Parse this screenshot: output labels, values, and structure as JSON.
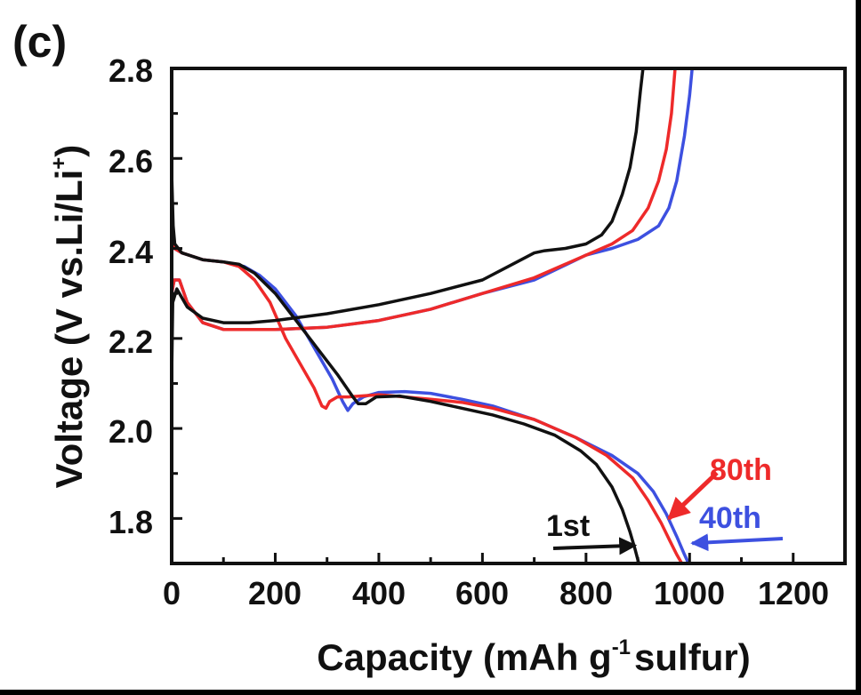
{
  "chart_data": {
    "type": "line",
    "panel_label": "(c)",
    "xlabel_main": "Capacity (mAh g",
    "xlabel_sup": "-1",
    "xlabel_tail": "sulfur)",
    "ylabel_main": "Voltage (V vs.Li/Li",
    "ylabel_sup": "+",
    "ylabel_tail": ")",
    "xlim": [
      0,
      1300
    ],
    "ylim": [
      1.7,
      2.8
    ],
    "x_ticks": [
      0,
      200,
      400,
      600,
      800,
      1000,
      1200
    ],
    "x_tick_labels": [
      "0",
      "200",
      "400",
      "600",
      "800",
      "1000",
      "1200"
    ],
    "y_ticks": [
      1.8,
      2.0,
      2.2,
      2.4,
      2.6,
      2.8
    ],
    "y_tick_labels": [
      "1.8",
      "2.0",
      "2.2",
      "2.4",
      "2.6",
      "2.8"
    ],
    "colors": {
      "black": "#111111",
      "red": "#ee2a2a",
      "blue": "#3d50e0"
    },
    "series": [
      {
        "name": "1st discharge",
        "label": "1st",
        "color": "#111111",
        "points": [
          [
            0,
            2.57
          ],
          [
            3,
            2.45
          ],
          [
            6,
            2.41
          ],
          [
            20,
            2.39
          ],
          [
            60,
            2.375
          ],
          [
            100,
            2.37
          ],
          [
            130,
            2.365
          ],
          [
            160,
            2.345
          ],
          [
            200,
            2.3
          ],
          [
            240,
            2.24
          ],
          [
            280,
            2.18
          ],
          [
            320,
            2.12
          ],
          [
            350,
            2.07
          ],
          [
            360,
            2.055
          ],
          [
            375,
            2.055
          ],
          [
            395,
            2.07
          ],
          [
            440,
            2.072
          ],
          [
            500,
            2.06
          ],
          [
            560,
            2.045
          ],
          [
            620,
            2.03
          ],
          [
            680,
            2.01
          ],
          [
            740,
            1.985
          ],
          [
            790,
            1.95
          ],
          [
            820,
            1.92
          ],
          [
            850,
            1.87
          ],
          [
            870,
            1.82
          ],
          [
            885,
            1.77
          ],
          [
            895,
            1.73
          ],
          [
            902,
            1.7
          ]
        ]
      },
      {
        "name": "1st charge",
        "label": "1st",
        "color": "#111111",
        "points": [
          [
            0,
            2.11
          ],
          [
            2,
            2.28
          ],
          [
            10,
            2.31
          ],
          [
            30,
            2.27
          ],
          [
            60,
            2.245
          ],
          [
            100,
            2.235
          ],
          [
            150,
            2.235
          ],
          [
            200,
            2.24
          ],
          [
            300,
            2.255
          ],
          [
            400,
            2.275
          ],
          [
            500,
            2.3
          ],
          [
            600,
            2.33
          ],
          [
            650,
            2.36
          ],
          [
            700,
            2.39
          ],
          [
            720,
            2.395
          ],
          [
            760,
            2.4
          ],
          [
            800,
            2.41
          ],
          [
            830,
            2.43
          ],
          [
            850,
            2.46
          ],
          [
            870,
            2.52
          ],
          [
            885,
            2.58
          ],
          [
            897,
            2.66
          ],
          [
            905,
            2.75
          ],
          [
            910,
            2.8
          ]
        ]
      },
      {
        "name": "40th discharge",
        "label": "40th",
        "color": "#3d50e0",
        "points": [
          [
            0,
            2.41
          ],
          [
            5,
            2.4
          ],
          [
            20,
            2.39
          ],
          [
            60,
            2.375
          ],
          [
            100,
            2.37
          ],
          [
            140,
            2.36
          ],
          [
            170,
            2.34
          ],
          [
            200,
            2.31
          ],
          [
            240,
            2.25
          ],
          [
            280,
            2.17
          ],
          [
            310,
            2.11
          ],
          [
            330,
            2.06
          ],
          [
            340,
            2.04
          ],
          [
            350,
            2.055
          ],
          [
            370,
            2.07
          ],
          [
            400,
            2.08
          ],
          [
            450,
            2.082
          ],
          [
            500,
            2.078
          ],
          [
            560,
            2.065
          ],
          [
            620,
            2.05
          ],
          [
            700,
            2.02
          ],
          [
            780,
            1.98
          ],
          [
            850,
            1.94
          ],
          [
            900,
            1.9
          ],
          [
            930,
            1.86
          ],
          [
            955,
            1.81
          ],
          [
            975,
            1.76
          ],
          [
            990,
            1.72
          ],
          [
            998,
            1.7
          ]
        ]
      },
      {
        "name": "40th charge",
        "label": "40th",
        "color": "#3d50e0",
        "points": [
          [
            0,
            2.3
          ],
          [
            5,
            2.33
          ],
          [
            15,
            2.33
          ],
          [
            30,
            2.28
          ],
          [
            60,
            2.235
          ],
          [
            100,
            2.22
          ],
          [
            200,
            2.22
          ],
          [
            300,
            2.225
          ],
          [
            400,
            2.24
          ],
          [
            500,
            2.265
          ],
          [
            600,
            2.3
          ],
          [
            700,
            2.33
          ],
          [
            800,
            2.385
          ],
          [
            850,
            2.4
          ],
          [
            900,
            2.42
          ],
          [
            940,
            2.45
          ],
          [
            960,
            2.49
          ],
          [
            975,
            2.55
          ],
          [
            990,
            2.65
          ],
          [
            1000,
            2.74
          ],
          [
            1005,
            2.8
          ]
        ]
      },
      {
        "name": "80th discharge",
        "label": "80th",
        "color": "#ee2a2a",
        "points": [
          [
            0,
            2.41
          ],
          [
            5,
            2.4
          ],
          [
            20,
            2.39
          ],
          [
            60,
            2.375
          ],
          [
            100,
            2.37
          ],
          [
            130,
            2.36
          ],
          [
            160,
            2.33
          ],
          [
            190,
            2.28
          ],
          [
            220,
            2.2
          ],
          [
            250,
            2.14
          ],
          [
            275,
            2.09
          ],
          [
            290,
            2.05
          ],
          [
            298,
            2.045
          ],
          [
            305,
            2.06
          ],
          [
            320,
            2.07
          ],
          [
            340,
            2.07
          ],
          [
            400,
            2.075
          ],
          [
            450,
            2.07
          ],
          [
            500,
            2.065
          ],
          [
            560,
            2.058
          ],
          [
            620,
            2.045
          ],
          [
            700,
            2.02
          ],
          [
            780,
            1.98
          ],
          [
            840,
            1.94
          ],
          [
            890,
            1.89
          ],
          [
            920,
            1.84
          ],
          [
            945,
            1.79
          ],
          [
            962,
            1.75
          ],
          [
            975,
            1.72
          ],
          [
            985,
            1.7
          ]
        ]
      },
      {
        "name": "80th charge",
        "label": "80th",
        "color": "#ee2a2a",
        "points": [
          [
            0,
            2.3
          ],
          [
            5,
            2.33
          ],
          [
            15,
            2.33
          ],
          [
            30,
            2.28
          ],
          [
            60,
            2.235
          ],
          [
            100,
            2.22
          ],
          [
            200,
            2.22
          ],
          [
            300,
            2.225
          ],
          [
            400,
            2.24
          ],
          [
            500,
            2.265
          ],
          [
            600,
            2.3
          ],
          [
            700,
            2.335
          ],
          [
            800,
            2.385
          ],
          [
            850,
            2.41
          ],
          [
            890,
            2.44
          ],
          [
            920,
            2.49
          ],
          [
            940,
            2.55
          ],
          [
            955,
            2.62
          ],
          [
            965,
            2.7
          ],
          [
            972,
            2.8
          ]
        ]
      }
    ],
    "annotations": [
      {
        "text": "1st",
        "color": "#111111",
        "arrow_to": [
          895,
          1.74
        ]
      },
      {
        "text": "80th",
        "color": "#ee2a2a",
        "arrow_to": [
          960,
          1.8
        ]
      },
      {
        "text": "40th",
        "color": "#3d50e0",
        "arrow_to": [
          1005,
          1.745
        ]
      }
    ]
  }
}
